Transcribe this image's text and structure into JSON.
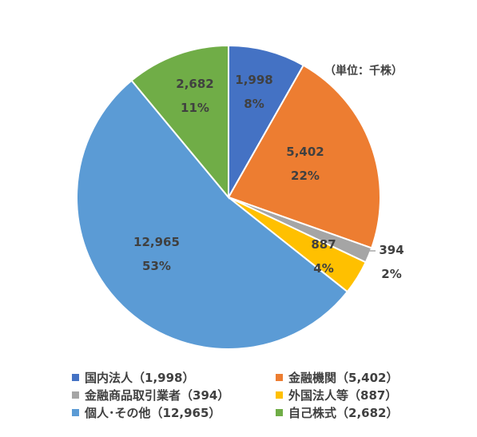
{
  "chart_data": {
    "type": "pie",
    "unit_label": "（単位：千株）",
    "slices": [
      {
        "name": "国内法人",
        "value": 1998,
        "value_label": "1,998",
        "percent_label": "8%",
        "color": "#4472c4",
        "legend": "国内法人（1,998）"
      },
      {
        "name": "金融機関",
        "value": 5402,
        "value_label": "5,402",
        "percent_label": "22%",
        "color": "#ed7d31",
        "legend": "金融機関（5,402）"
      },
      {
        "name": "金融商品取引業者",
        "value": 394,
        "value_label": "394",
        "percent_label": "2%",
        "color": "#a5a5a5",
        "legend": "金融商品取引業者（394）"
      },
      {
        "name": "外国法人等",
        "value": 887,
        "value_label": "887",
        "percent_label": "4%",
        "color": "#ffc000",
        "legend": "外国法人等（887）"
      },
      {
        "name": "個人・その他",
        "value": 12965,
        "value_label": "12,965",
        "percent_label": "53%",
        "color": "#5b9bd5",
        "legend": "個人･その他（12,965）"
      },
      {
        "name": "自己株式",
        "value": 2682,
        "value_label": "2,682",
        "percent_label": "11%",
        "color": "#70ad47",
        "legend": "自己株式（2,682）"
      }
    ],
    "legend_placement": "bottom"
  }
}
